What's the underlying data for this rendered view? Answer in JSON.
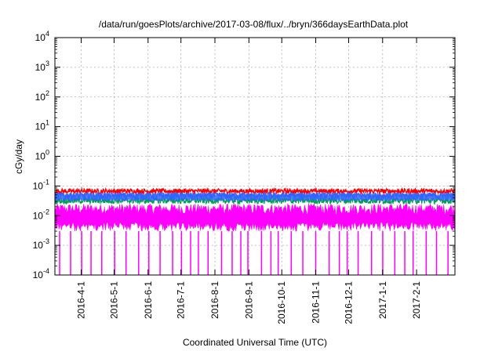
{
  "chart_data": {
    "type": "line",
    "title": "/data/run/goesPlots/archive/2017-03-08/flux/../bryn/366daysEarthData.plot",
    "xlabel": "Coordinated Universal Time (UTC)",
    "ylabel": "cGy/day",
    "yscale": "log",
    "ylim": [
      0.0001,
      10000
    ],
    "xlim": [
      "2016-03-08",
      "2017-03-08"
    ],
    "grid": true,
    "y_ticks": [
      {
        "base": "10",
        "exp": "-4"
      },
      {
        "base": "10",
        "exp": "-3"
      },
      {
        "base": "10",
        "exp": "-2"
      },
      {
        "base": "10",
        "exp": "-1"
      },
      {
        "base": "10",
        "exp": "0"
      },
      {
        "base": "10",
        "exp": "1"
      },
      {
        "base": "10",
        "exp": "2"
      },
      {
        "base": "10",
        "exp": "3"
      },
      {
        "base": "10",
        "exp": "4"
      }
    ],
    "x_ticks": [
      "2016-4-1",
      "2016-5-1",
      "2016-6-1",
      "2016-7-1",
      "2016-8-1",
      "2016-9-1",
      "2016-10-1",
      "2016-11-1",
      "2016-12-1",
      "2017-1-1",
      "2017-2-1"
    ],
    "x_tick_dates": [
      "2016-04-01",
      "2016-05-01",
      "2016-06-01",
      "2016-07-01",
      "2016-08-01",
      "2016-09-01",
      "2016-10-01",
      "2016-11-01",
      "2016-12-01",
      "2017-01-01",
      "2017-02-01"
    ],
    "series": [
      {
        "color": "#ff0000",
        "typical": 0.065,
        "low": 0.055,
        "high": 0.08
      },
      {
        "color": "#2f64ff",
        "typical": 0.045,
        "low": 0.035,
        "high": 0.06
      },
      {
        "color": "#00a050",
        "typical": 0.03,
        "low": 0.025,
        "high": 0.04
      },
      {
        "color": "#ff00ff",
        "typical": 0.008,
        "low": 0.003,
        "high": 0.025,
        "dropout_min": 0.0001
      }
    ]
  }
}
